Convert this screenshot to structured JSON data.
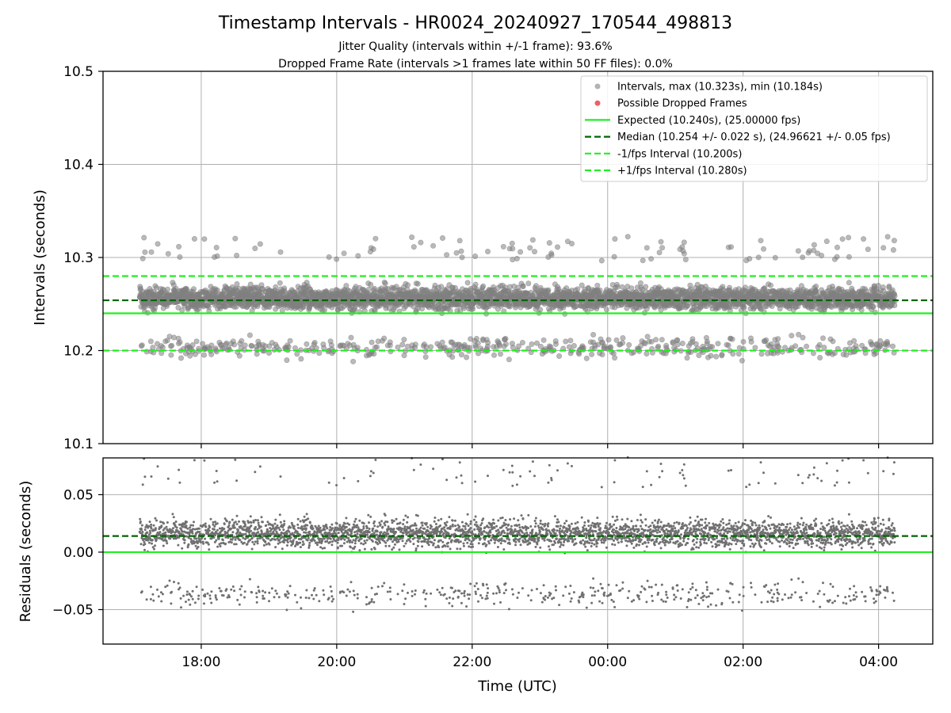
{
  "chart_data": {
    "type": "scatter",
    "title": "Timestamp Intervals - HR0024_20240927_170544_498813",
    "subtitles": [
      "Jitter Quality (intervals within +/-1 frame): 93.6%",
      "Dropped Frame Rate (intervals >1 frames late within 50 FF files): 0.0%"
    ],
    "xlabel": "Time (UTC)",
    "x_ticks": [
      "18:00",
      "20:00",
      "22:00",
      "00:00",
      "02:00",
      "04:00"
    ],
    "x_range_hours": [
      16.55,
      28.8
    ],
    "x_data_range_hours": [
      17.09,
      28.24
    ],
    "x_tick_hours": [
      18,
      20,
      22,
      24,
      26,
      28
    ],
    "grid": true,
    "legend_position": "top-right",
    "top_panel": {
      "ylabel": "Intervals (seconds)",
      "ylim": [
        10.1,
        10.5
      ],
      "y_ticks": [
        "10.1",
        "10.2",
        "10.3",
        "10.4",
        "10.5"
      ],
      "y_tick_values": [
        10.1,
        10.2,
        10.3,
        10.4,
        10.5
      ],
      "intervals_max": 10.323,
      "intervals_min": 10.184,
      "expected": 10.24,
      "expected_fps": 25.0,
      "median": 10.254,
      "median_std": 0.022,
      "median_fps": 24.96621,
      "minus_one_fps_interval": 10.2,
      "plus_one_fps_interval": 10.28,
      "dropped_frames_count": 0
    },
    "bottom_panel": {
      "ylabel": "Residuals (seconds)",
      "ylim": [
        -0.08,
        0.082
      ],
      "y_ticks": [
        "−0.05",
        "0.00",
        "0.05"
      ],
      "y_tick_values": [
        -0.05,
        0.0,
        0.05
      ],
      "expected_residual": 0.0,
      "median_residual": 0.014
    },
    "legend": [
      {
        "label": "Intervals, max (10.323s), min (10.184s)",
        "kind": "dot",
        "color": "#808080"
      },
      {
        "label": "Possible Dropped Frames",
        "kind": "dot",
        "color": "#f06060"
      },
      {
        "label": "Expected (10.240s), (25.00000 fps)",
        "kind": "solid",
        "color": "#22ee22"
      },
      {
        "label": "Median (10.254 +/- 0.022 s), (24.96621 +/- 0.05 fps)",
        "kind": "dashed",
        "color": "#006400"
      },
      {
        "label": "-1/fps Interval (10.200s)",
        "kind": "dashed",
        "color": "#22ee22"
      },
      {
        "label": "+1/fps Interval (10.280s)",
        "kind": "dashed",
        "color": "#22ee22"
      }
    ],
    "colors": {
      "points": "#808080",
      "expected": "#22ee22",
      "median": "#006400",
      "fps_bounds": "#22ee22",
      "grid": "#b0b0b0"
    },
    "point_count": 3900,
    "distribution": {
      "main_cluster_center": 10.256,
      "main_cluster_spread": 0.006,
      "lower_cluster_center": 10.203,
      "lower_cluster_spread": 0.005,
      "lower_cluster_fraction": 0.12,
      "outlier_fraction": 0.02,
      "outlier_range": [
        10.296,
        10.323
      ]
    }
  }
}
